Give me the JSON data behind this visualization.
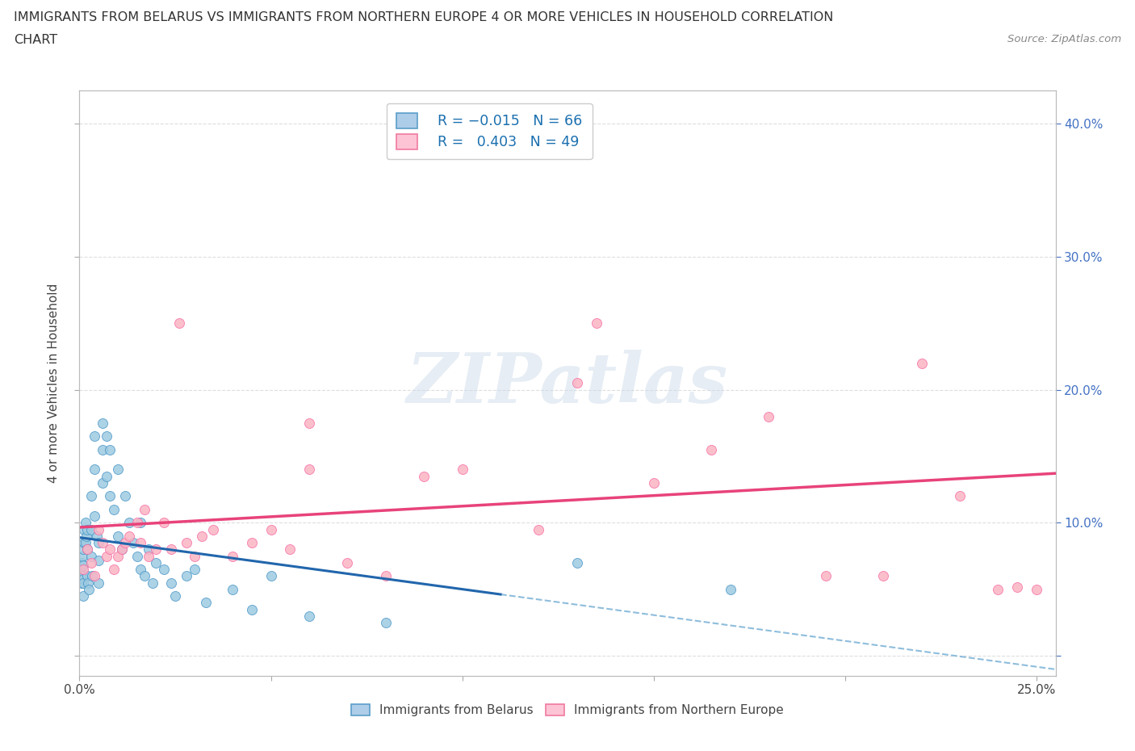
{
  "title_line1": "IMMIGRANTS FROM BELARUS VS IMMIGRANTS FROM NORTHERN EUROPE 4 OR MORE VEHICLES IN HOUSEHOLD CORRELATION",
  "title_line2": "CHART",
  "source": "Source: ZipAtlas.com",
  "belarus": {
    "label": "Immigrants from Belarus",
    "color": "#9ecae1",
    "edge_color": "#4292c6",
    "R": -0.015,
    "N": 66,
    "trend_solid_color": "#2166ac",
    "trend_dash_color": "#6baed6",
    "x": [
      0.0003,
      0.0004,
      0.0005,
      0.0006,
      0.0007,
      0.0008,
      0.0009,
      0.001,
      0.001,
      0.001,
      0.001,
      0.0012,
      0.0012,
      0.0015,
      0.0015,
      0.0018,
      0.002,
      0.002,
      0.002,
      0.0022,
      0.0025,
      0.003,
      0.003,
      0.003,
      0.0032,
      0.004,
      0.004,
      0.004,
      0.0045,
      0.005,
      0.005,
      0.005,
      0.006,
      0.006,
      0.006,
      0.007,
      0.007,
      0.008,
      0.008,
      0.009,
      0.01,
      0.01,
      0.011,
      0.012,
      0.013,
      0.014,
      0.015,
      0.016,
      0.016,
      0.017,
      0.018,
      0.019,
      0.02,
      0.022,
      0.024,
      0.025,
      0.028,
      0.03,
      0.033,
      0.04,
      0.045,
      0.05,
      0.06,
      0.08,
      0.13,
      0.17
    ],
    "y": [
      0.065,
      0.06,
      0.07,
      0.055,
      0.075,
      0.06,
      0.058,
      0.08,
      0.068,
      0.055,
      0.045,
      0.095,
      0.085,
      0.1,
      0.085,
      0.09,
      0.095,
      0.08,
      0.06,
      0.055,
      0.05,
      0.12,
      0.095,
      0.075,
      0.06,
      0.165,
      0.14,
      0.105,
      0.09,
      0.085,
      0.072,
      0.055,
      0.175,
      0.155,
      0.13,
      0.165,
      0.135,
      0.155,
      0.12,
      0.11,
      0.14,
      0.09,
      0.08,
      0.12,
      0.1,
      0.085,
      0.075,
      0.1,
      0.065,
      0.06,
      0.08,
      0.055,
      0.07,
      0.065,
      0.055,
      0.045,
      0.06,
      0.065,
      0.04,
      0.05,
      0.035,
      0.06,
      0.03,
      0.025,
      0.07,
      0.05
    ]
  },
  "northern": {
    "label": "Immigrants from Northern Europe",
    "color": "#fbb4c4",
    "edge_color": "#f768a1",
    "R": 0.403,
    "N": 49,
    "trend_color": "#e8437a",
    "x": [
      0.001,
      0.002,
      0.003,
      0.004,
      0.005,
      0.006,
      0.007,
      0.008,
      0.009,
      0.01,
      0.011,
      0.012,
      0.013,
      0.015,
      0.016,
      0.017,
      0.018,
      0.02,
      0.022,
      0.024,
      0.026,
      0.028,
      0.03,
      0.032,
      0.035,
      0.04,
      0.045,
      0.05,
      0.055,
      0.06,
      0.07,
      0.08,
      0.09,
      0.1,
      0.11,
      0.12,
      0.135,
      0.15,
      0.165,
      0.18,
      0.195,
      0.21,
      0.22,
      0.23,
      0.24,
      0.245,
      0.25,
      0.06,
      0.13
    ],
    "y": [
      0.065,
      0.08,
      0.07,
      0.06,
      0.095,
      0.085,
      0.075,
      0.08,
      0.065,
      0.075,
      0.08,
      0.085,
      0.09,
      0.1,
      0.085,
      0.11,
      0.075,
      0.08,
      0.1,
      0.08,
      0.25,
      0.085,
      0.075,
      0.09,
      0.095,
      0.075,
      0.085,
      0.095,
      0.08,
      0.14,
      0.07,
      0.06,
      0.135,
      0.14,
      0.395,
      0.095,
      0.25,
      0.13,
      0.155,
      0.18,
      0.06,
      0.06,
      0.22,
      0.12,
      0.05,
      0.052,
      0.05,
      0.175,
      0.205
    ]
  },
  "xlim": [
    0.0,
    0.255
  ],
  "ylim": [
    -0.015,
    0.425
  ],
  "xticks": [
    0.0,
    0.05,
    0.1,
    0.15,
    0.2,
    0.25
  ],
  "xticklabels": [
    "0.0%",
    "",
    "",
    "",
    "",
    "25.0%"
  ],
  "yticks": [
    0.0,
    0.1,
    0.2,
    0.3,
    0.4
  ],
  "yticklabels_right": [
    "",
    "10.0%",
    "20.0%",
    "30.0%",
    "40.0%"
  ],
  "ylabel": "4 or more Vehicles in Household",
  "watermark": "ZIPatlas",
  "bg_color": "#ffffff",
  "grid_color": "#d0d0d0",
  "title_fontsize": 11.5,
  "legend_text_color": "#1a6faf",
  "blue_trend_solid_end": 0.11,
  "blue_trend_dash_start": 0.11
}
